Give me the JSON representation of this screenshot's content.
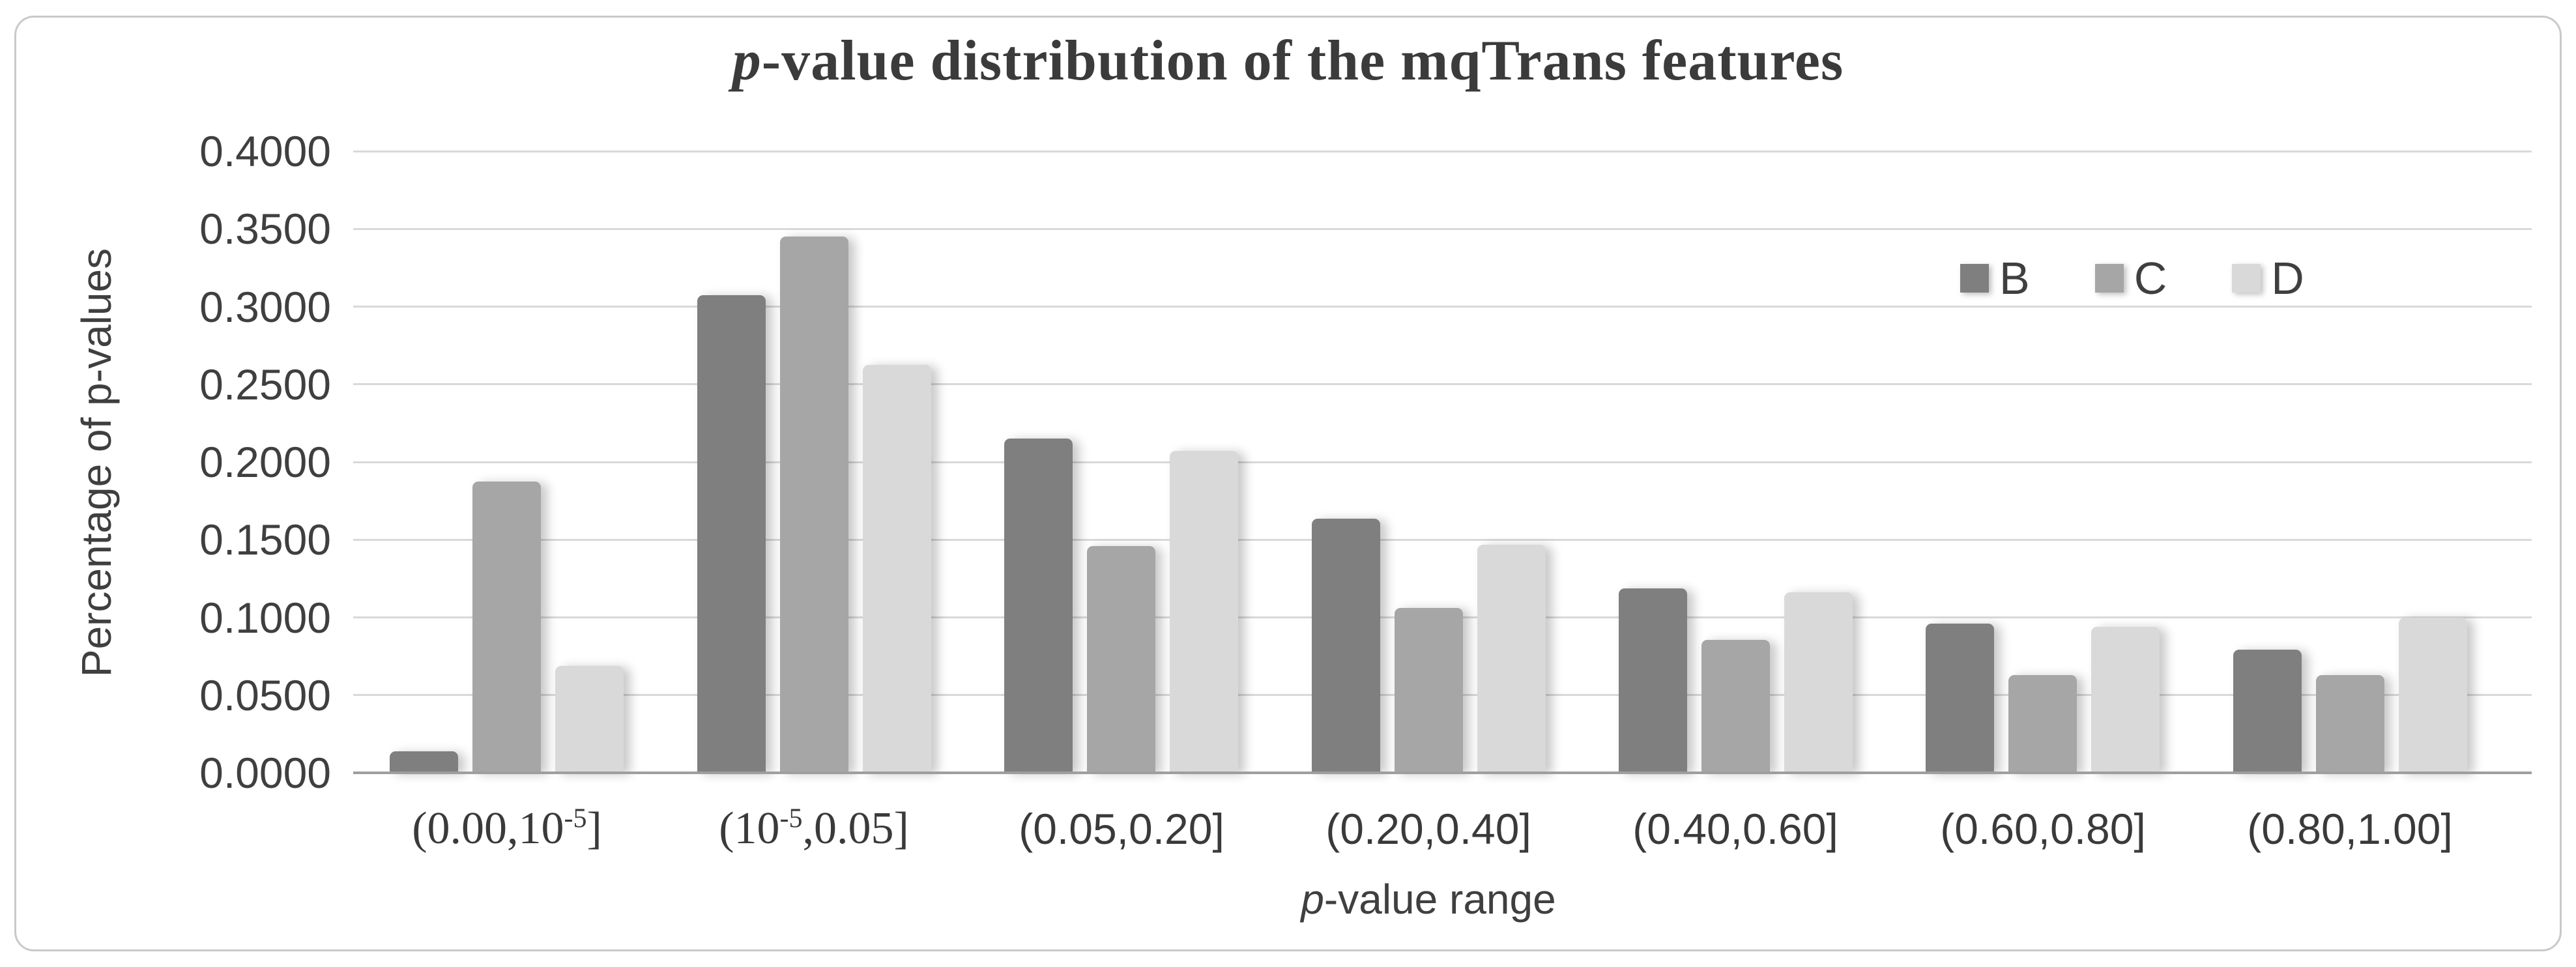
{
  "figure": {
    "title_italic": "p",
    "title_rest": "-value distribution of the mqTrans features"
  },
  "y_axis": {
    "title": "Percentage of p-values",
    "tick_labels": [
      "0.4000",
      "0.3500",
      "0.3000",
      "0.2500",
      "0.2000",
      "0.1500",
      "0.1000",
      "0.0500",
      "0.0000"
    ]
  },
  "x_axis": {
    "title_italic": "p",
    "title_rest": "-value range"
  },
  "legend": {
    "items": [
      {
        "label": "B",
        "color": "#7f7f7f"
      },
      {
        "label": "C",
        "color": "#a6a6a6"
      },
      {
        "label": "D",
        "color": "#d9d9d9"
      }
    ]
  },
  "chart_data": {
    "type": "bar",
    "title": "p-value distribution of the mqTrans features",
    "xlabel": "p-value range",
    "ylabel": "Percentage of p-values",
    "ylim": [
      0,
      0.4
    ],
    "y_tick_step": 0.05,
    "grid": true,
    "legend_position": "inside-top-right",
    "categories": [
      "(0.00,10^-5]",
      "(10^-5,0.05]",
      "(0.05,0.20]",
      "(0.20,0.40]",
      "(0.40,0.60]",
      "(0.60,0.80]",
      "(0.80,1.00]"
    ],
    "series": [
      {
        "name": "B",
        "color": "#7f7f7f",
        "values": [
          0.0138,
          0.3075,
          0.2152,
          0.1635,
          0.1187,
          0.096,
          0.0792
        ]
      },
      {
        "name": "C",
        "color": "#a6a6a6",
        "values": [
          0.1875,
          0.345,
          0.1459,
          0.1061,
          0.0855,
          0.0629,
          0.0629
        ]
      },
      {
        "name": "D",
        "color": "#d9d9d9",
        "values": [
          0.0688,
          0.2625,
          0.2071,
          0.1468,
          0.1161,
          0.0939,
          0.0998
        ]
      }
    ]
  }
}
